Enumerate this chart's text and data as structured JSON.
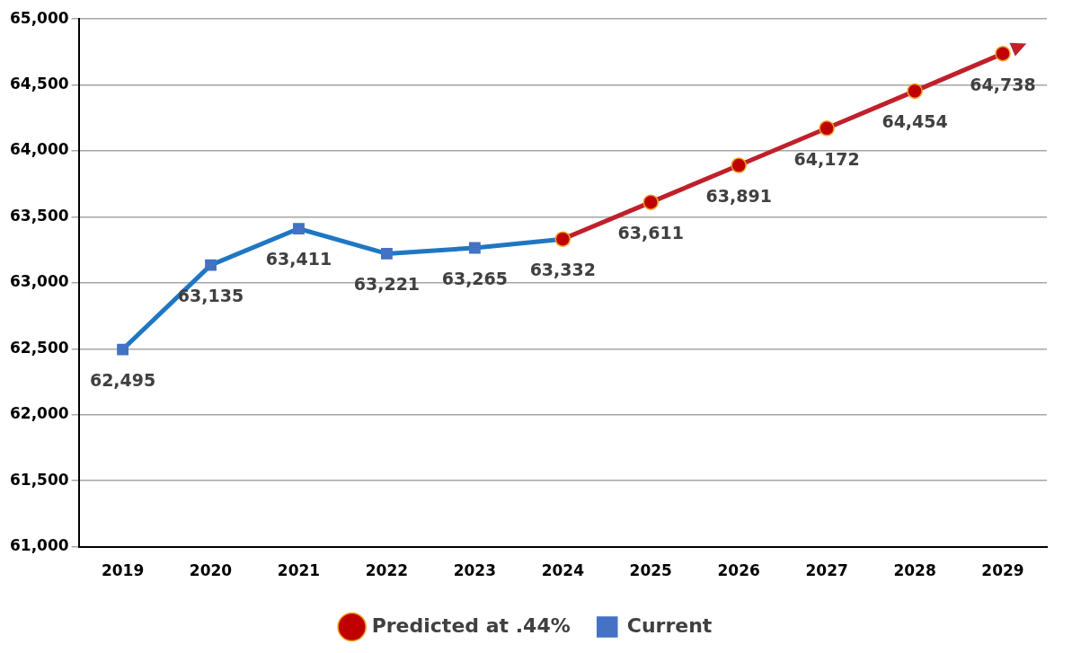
{
  "chart_data": {
    "type": "line",
    "categories": [
      "2019",
      "2020",
      "2021",
      "2022",
      "2023",
      "2024",
      "2025",
      "2026",
      "2027",
      "2028",
      "2029"
    ],
    "ylim": [
      61000,
      65000
    ],
    "yticks": [
      {
        "value": 61000,
        "label": "61,000"
      },
      {
        "value": 61500,
        "label": "61,500"
      },
      {
        "value": 62000,
        "label": "62,000"
      },
      {
        "value": 62500,
        "label": "62,500"
      },
      {
        "value": 63000,
        "label": "63,000"
      },
      {
        "value": 63500,
        "label": "63,500"
      },
      {
        "value": 64000,
        "label": "64,000"
      },
      {
        "value": 64500,
        "label": "64,500"
      },
      {
        "value": 65000,
        "label": "65,000"
      }
    ],
    "grid": "y",
    "legend": "bottom",
    "series": [
      {
        "name": "Current",
        "color": "#1f77c4",
        "marker": "square",
        "values": [
          62495,
          63135,
          63411,
          63221,
          63265,
          63332,
          null,
          null,
          null,
          null,
          null
        ],
        "value_labels": [
          "62,495",
          "63,135",
          "63,411",
          "63,221",
          "63,265",
          "63,332",
          null,
          null,
          null,
          null,
          null
        ]
      },
      {
        "name": "Predicted at .44%",
        "color": "#c0202a",
        "marker": "circle",
        "values": [
          null,
          null,
          null,
          null,
          null,
          63332,
          63611,
          63891,
          64172,
          64454,
          64738
        ],
        "value_labels": [
          null,
          null,
          null,
          null,
          null,
          null,
          "63,611",
          "63,891",
          "64,172",
          "64,454",
          "64,738"
        ]
      }
    ]
  }
}
